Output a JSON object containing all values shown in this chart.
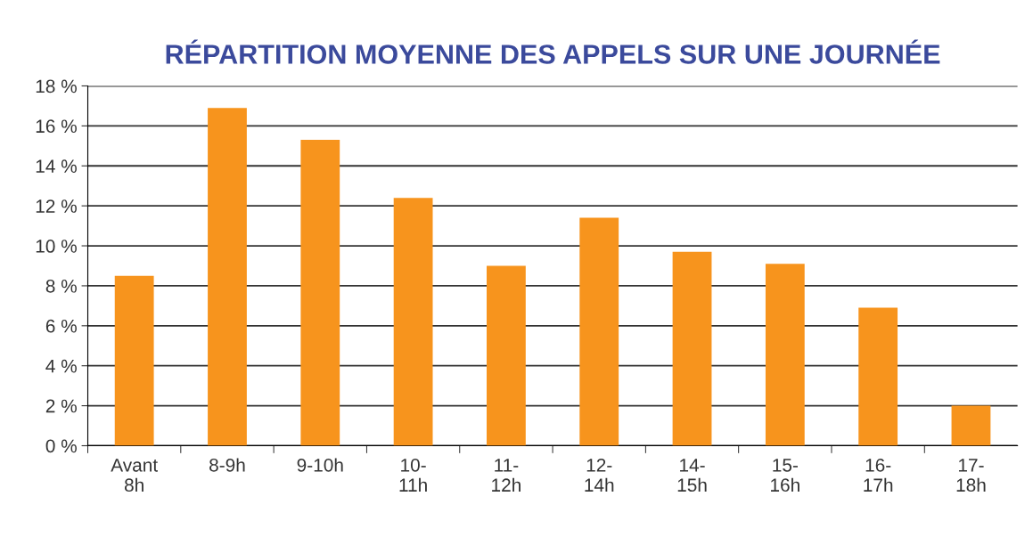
{
  "chart_data": {
    "type": "bar",
    "title": "RÉPARTITION MOYENNE DES APPELS SUR UNE JOURNÉE",
    "categories": [
      "Avant\n8h",
      "8-9h",
      "9-10h",
      "10-\n11h",
      "11-\n12h",
      "12-\n14h",
      "14-\n15h",
      "15-\n16h",
      "16-\n17h",
      "17-\n18h"
    ],
    "values": [
      8.5,
      16.9,
      15.3,
      12.4,
      9.0,
      11.4,
      9.7,
      9.1,
      6.9,
      2.0
    ],
    "color": "#f7941d",
    "ylim": [
      0,
      18
    ],
    "yticks": [
      {
        "value": 0,
        "label": "0 %"
      },
      {
        "value": 2,
        "label": "2 %"
      },
      {
        "value": 4,
        "label": "4 %"
      },
      {
        "value": 6,
        "label": "6 %"
      },
      {
        "value": 8,
        "label": "8 %"
      },
      {
        "value": 10,
        "label": "10 %"
      },
      {
        "value": 12,
        "label": "12 %"
      },
      {
        "value": 14,
        "label": "14 %"
      },
      {
        "value": 16,
        "label": "16 %"
      },
      {
        "value": 18,
        "label": "18 %"
      }
    ],
    "grid": "y"
  }
}
